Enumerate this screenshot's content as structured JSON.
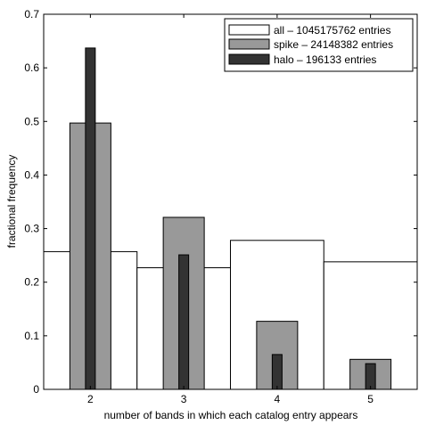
{
  "chart_data": {
    "type": "bar",
    "categories": [
      "2",
      "3",
      "4",
      "5"
    ],
    "xlabel": "number of bands in which each catalog entry appears",
    "ylabel": "fractional frequency",
    "ylim": [
      0,
      0.7
    ],
    "yticks": [
      "0",
      "0.1",
      "0.2",
      "0.3",
      "0.4",
      "0.5",
      "0.6",
      "0.7"
    ],
    "grid": false,
    "legend_position": "top-right",
    "series": [
      {
        "name": "all – 1045175762 entries",
        "values": [
          0.257,
          0.227,
          0.278,
          0.238
        ],
        "color": "#ffffff",
        "outline": "#000000",
        "width": "full"
      },
      {
        "name": "spike – 24148382 entries",
        "values": [
          0.497,
          0.321,
          0.127,
          0.056
        ],
        "color": "#999999",
        "outline": "#000000",
        "width": "medium"
      },
      {
        "name": "halo – 196133 entries",
        "values": [
          0.637,
          0.251,
          0.065,
          0.048
        ],
        "color": "#333333",
        "outline": "#000000",
        "width": "narrow"
      }
    ]
  }
}
